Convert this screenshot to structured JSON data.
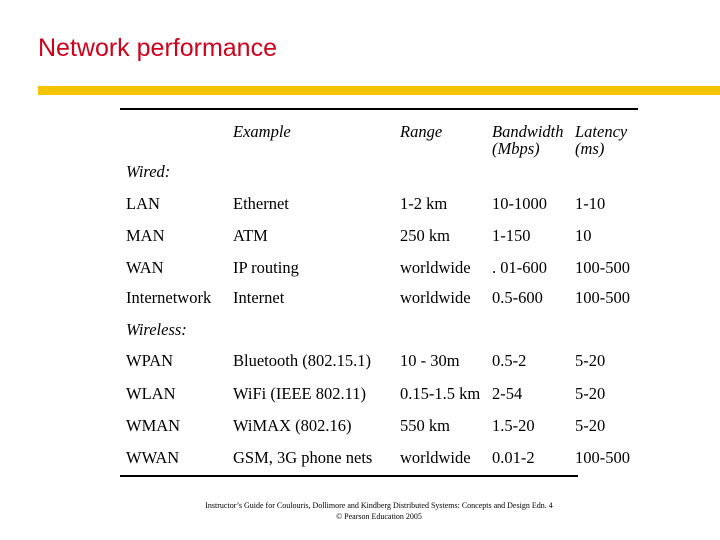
{
  "slide": {
    "title": "Network performance",
    "accent_color": "#d0021b",
    "bar_color": "#f5c400"
  },
  "table": {
    "headers": {
      "example": "Example",
      "range": "Range",
      "bandwidth_line1": "Bandwidth",
      "bandwidth_line2": "(Mbps)",
      "latency_line1": "Latency",
      "latency_line2": "(ms)"
    },
    "wired_label": "Wired:",
    "wireless_label": "Wireless:",
    "wired_rows": [
      {
        "type": "LAN",
        "example": "Ethernet",
        "range": "1-2 km",
        "bandwidth": "10-1000",
        "latency": "1-10"
      },
      {
        "type": "MAN",
        "example": "ATM",
        "range": "250 km",
        "bandwidth": "1-150",
        "latency": "10"
      },
      {
        "type": "WAN",
        "example": "IP routing",
        "range": "worldwide",
        "bandwidth": ". 01-600",
        "latency": "100-500"
      },
      {
        "type": "Internetwork",
        "example": "Internet",
        "range": "worldwide",
        "bandwidth": "0.5-600",
        "latency": "100-500"
      }
    ],
    "wireless_rows": [
      {
        "type": "WPAN",
        "example": "Bluetooth (802.15.1)",
        "range": "10 - 30m",
        "bandwidth": "0.5-2",
        "latency": "5-20"
      },
      {
        "type": "WLAN",
        "example": "WiFi (IEEE 802.11)",
        "range": "0.15-1.5 km",
        "bandwidth": "2-54",
        "latency": "5-20"
      },
      {
        "type": "WMAN",
        "example": "WiMAX (802.16)",
        "range": "550 km",
        "bandwidth": "1.5-20",
        "latency": "5-20"
      },
      {
        "type": "WWAN",
        "example": "GSM, 3G phone nets",
        "range": "worldwide",
        "bandwidth": "0.01-2",
        "latency": "100-500"
      }
    ]
  },
  "footer": {
    "line1": "Instructor’s Guide for Coulouris, Dollimore and Kindberg Distributed Systems: Concepts and Design Edn. 4",
    "line2": "© Pearson Education 2005"
  }
}
